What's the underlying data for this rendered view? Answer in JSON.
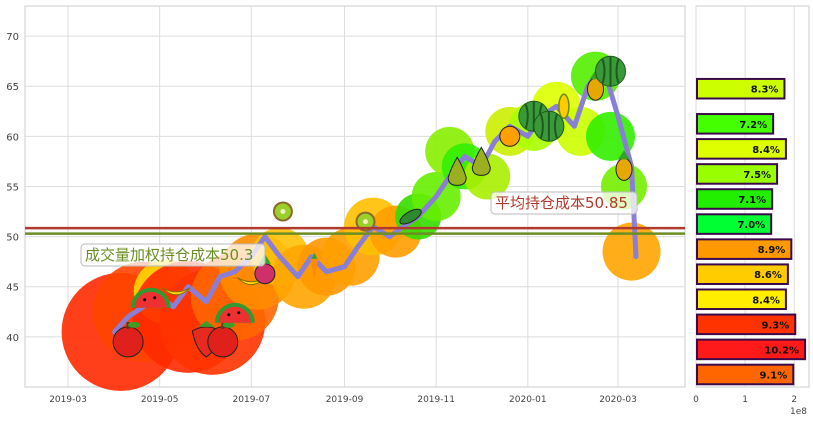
{
  "chart_data": [
    {
      "type": "line",
      "x_ticks": [
        "2019-03",
        "2019-05",
        "2019-07",
        "2019-09",
        "2019-11",
        "2020-01",
        "2020-03"
      ],
      "y_ticks": [
        40,
        45,
        50,
        55,
        60,
        65,
        70
      ],
      "ylim": [
        35,
        73
      ],
      "grid": true,
      "series": [
        {
          "color": "#8a7fd6",
          "x": [
            "2019-04-01",
            "2019-04-10",
            "2019-04-20",
            "2019-05-01",
            "2019-05-10",
            "2019-05-20",
            "2019-06-01",
            "2019-06-10",
            "2019-06-20",
            "2019-07-01",
            "2019-07-10",
            "2019-07-20",
            "2019-08-01",
            "2019-08-10",
            "2019-08-20",
            "2019-09-01",
            "2019-09-10",
            "2019-09-20",
            "2019-10-01",
            "2019-10-10",
            "2019-10-20",
            "2019-11-01",
            "2019-11-10",
            "2019-11-20",
            "2019-12-01",
            "2019-12-10",
            "2019-12-20",
            "2020-01-01",
            "2020-01-10",
            "2020-01-20",
            "2020-02-01",
            "2020-02-10",
            "2020-02-20",
            "2020-03-01",
            "2020-03-10",
            "2020-03-13"
          ],
          "values": [
            40.5,
            42,
            43,
            44,
            43,
            45,
            43.5,
            46,
            46.5,
            48,
            50,
            48,
            46,
            48,
            46.5,
            47,
            49,
            51,
            50,
            51,
            52,
            54,
            56,
            58,
            57,
            59.5,
            61,
            60,
            62,
            63,
            61,
            65,
            67,
            62,
            57,
            48
          ]
        }
      ],
      "horizontal_lines": [
        {
          "value": 50.85,
          "label": "平均持仓成本50.85",
          "color": "#b03a2e"
        },
        {
          "value": 50.3,
          "label": "成交量加权持仓成本50.3",
          "color": "#6b8e23"
        }
      ],
      "markers": [
        {
          "date": "2019-04-05",
          "price": 40.5,
          "size": 1.5,
          "color": "#ff2a00"
        },
        {
          "date": "2019-04-20",
          "price": 42.5,
          "size": 1.2,
          "color": "#ff4500"
        },
        {
          "date": "2019-05-05",
          "price": 44.5,
          "size": 0.6,
          "color": "#ffd700"
        },
        {
          "date": "2019-05-20",
          "price": 42,
          "size": 1.4,
          "color": "#ff2a00"
        },
        {
          "date": "2019-06-05",
          "price": 41.5,
          "size": 1.3,
          "color": "#ff3300"
        },
        {
          "date": "2019-06-20",
          "price": 44,
          "size": 1.0,
          "color": "#ff6600"
        },
        {
          "date": "2019-07-05",
          "price": 46.5,
          "size": 0.8,
          "color": "#ff8c00"
        },
        {
          "date": "2019-07-20",
          "price": 48,
          "size": 0.5,
          "color": "#ffc107"
        },
        {
          "date": "2019-08-05",
          "price": 46,
          "size": 0.6,
          "color": "#ffa500"
        },
        {
          "date": "2019-08-20",
          "price": 47,
          "size": 0.5,
          "color": "#ff9800"
        },
        {
          "date": "2019-09-05",
          "price": 48,
          "size": 0.5,
          "color": "#ffa000"
        },
        {
          "date": "2019-09-20",
          "price": 51,
          "size": 0.5,
          "color": "#ffbf00"
        },
        {
          "date": "2019-10-05",
          "price": 50.5,
          "size": 0.4,
          "color": "#ff9d00"
        },
        {
          "date": "2019-10-20",
          "price": 52,
          "size": 0.3,
          "color": "#33dd00"
        },
        {
          "date": "2019-11-01",
          "price": 54,
          "size": 0.35,
          "color": "#66ee00"
        },
        {
          "date": "2019-11-10",
          "price": 58.5,
          "size": 0.35,
          "color": "#88ee00"
        },
        {
          "date": "2019-11-20",
          "price": 57,
          "size": 0.3,
          "color": "#33ee00"
        },
        {
          "date": "2019-12-05",
          "price": 56,
          "size": 0.3,
          "color": "#aaee00"
        },
        {
          "date": "2019-12-20",
          "price": 60.5,
          "size": 0.35,
          "color": "#ccee00"
        },
        {
          "date": "2020-01-05",
          "price": 61,
          "size": 0.35,
          "color": "#aaff00"
        },
        {
          "date": "2020-01-20",
          "price": 63,
          "size": 0.35,
          "color": "#ddff00"
        },
        {
          "date": "2020-02-05",
          "price": 60.5,
          "size": 0.35,
          "color": "#ccff00"
        },
        {
          "date": "2020-02-15",
          "price": 66,
          "size": 0.35,
          "color": "#55ee00"
        },
        {
          "date": "2020-02-25",
          "price": 60,
          "size": 0.35,
          "color": "#33ee00"
        },
        {
          "date": "2020-03-05",
          "price": 55,
          "size": 0.3,
          "color": "#77ee00"
        },
        {
          "date": "2020-03-10",
          "price": 48.5,
          "size": 0.5,
          "color": "#ffa500"
        }
      ],
      "fruit_icons": [
        {
          "icon": "apple-icon",
          "date": "2019-04-10",
          "price": 39.5
        },
        {
          "icon": "watermelon-slice-icon",
          "date": "2019-04-25",
          "price": 43.5
        },
        {
          "icon": "banana-icon",
          "date": "2019-05-12",
          "price": 44.5
        },
        {
          "icon": "strawberry-icon",
          "date": "2019-06-01",
          "price": 40
        },
        {
          "icon": "apple-icon",
          "date": "2019-06-12",
          "price": 39.5
        },
        {
          "icon": "watermelon-slice-icon",
          "date": "2019-06-20",
          "price": 42
        },
        {
          "icon": "banana-icon",
          "date": "2019-07-01",
          "price": 45.5
        },
        {
          "icon": "radish-icon",
          "date": "2019-07-10",
          "price": 46.5
        },
        {
          "icon": "kiwi-icon",
          "date": "2019-07-22",
          "price": 52.5
        },
        {
          "icon": "carrot-icon",
          "date": "2019-08-12",
          "price": 47
        },
        {
          "icon": "kiwi-icon",
          "date": "2019-09-15",
          "price": 51.5
        },
        {
          "icon": "cucumber-icon",
          "date": "2019-10-15",
          "price": 52
        },
        {
          "icon": "pear-icon",
          "date": "2019-11-15",
          "price": 56.5
        },
        {
          "icon": "pear-icon",
          "date": "2019-12-01",
          "price": 57.5
        },
        {
          "icon": "orange-icon",
          "date": "2019-12-20",
          "price": 60
        },
        {
          "icon": "watermelon-icon",
          "date": "2020-01-05",
          "price": 62
        },
        {
          "icon": "watermelon-icon",
          "date": "2020-01-15",
          "price": 61
        },
        {
          "icon": "corn-icon",
          "date": "2020-01-25",
          "price": 63
        },
        {
          "icon": "pineapple-icon",
          "date": "2020-02-15",
          "price": 65
        },
        {
          "icon": "watermelon-icon",
          "date": "2020-02-25",
          "price": 66.5
        },
        {
          "icon": "pineapple-icon",
          "date": "2020-03-05",
          "price": 57
        }
      ]
    },
    {
      "type": "bar",
      "orientation": "horizontal",
      "x_ticks": [
        "0",
        "1",
        "2"
      ],
      "x_exponent": "1e8",
      "xlim": [
        0,
        2.3
      ],
      "bars": [
        {
          "price": 64.75,
          "value": 1.78,
          "label": "8.3%",
          "color": "#ccff00"
        },
        {
          "price": 61.25,
          "value": 1.55,
          "label": "7.2%",
          "color": "#44ff00"
        },
        {
          "price": 58.75,
          "value": 1.81,
          "label": "8.4%",
          "color": "#ddff00"
        },
        {
          "price": 56.25,
          "value": 1.63,
          "label": "7.5%",
          "color": "#99ff00"
        },
        {
          "price": 53.75,
          "value": 1.53,
          "label": "7.1%",
          "color": "#22ee00"
        },
        {
          "price": 51.25,
          "value": 1.51,
          "label": "7.0%",
          "color": "#00ff33"
        },
        {
          "price": 48.75,
          "value": 1.92,
          "label": "8.9%",
          "color": "#ff9900"
        },
        {
          "price": 46.25,
          "value": 1.85,
          "label": "8.6%",
          "color": "#ffcc00"
        },
        {
          "price": 43.75,
          "value": 1.81,
          "label": "8.4%",
          "color": "#ffee00"
        },
        {
          "price": 41.25,
          "value": 2.0,
          "label": "9.3%",
          "color": "#ff3300"
        },
        {
          "price": 38.75,
          "value": 2.2,
          "label": "10.2%",
          "color": "#ff1a1a"
        },
        {
          "price": 36.25,
          "value": 1.96,
          "label": "9.1%",
          "color": "#ff6600"
        }
      ]
    }
  ]
}
